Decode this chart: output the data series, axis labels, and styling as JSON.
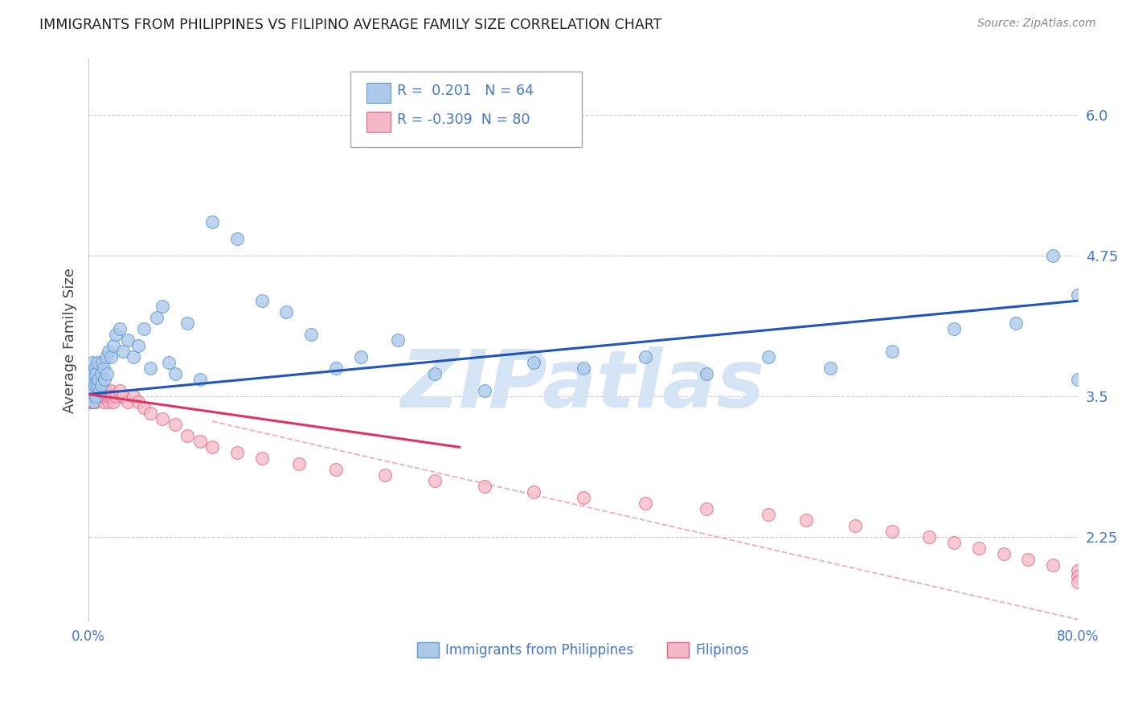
{
  "title": "IMMIGRANTS FROM PHILIPPINES VS FILIPINO AVERAGE FAMILY SIZE CORRELATION CHART",
  "source": "Source: ZipAtlas.com",
  "ylabel": "Average Family Size",
  "yticks": [
    2.25,
    3.5,
    4.75,
    6.0
  ],
  "xlim": [
    0.0,
    0.8
  ],
  "ylim": [
    1.5,
    6.5
  ],
  "series1_label": "Immigrants from Philippines",
  "series1_R": 0.201,
  "series1_N": 64,
  "series1_color": "#adc9ea",
  "series1_edge": "#5b9bd5",
  "series2_label": "Filipinos",
  "series2_R": -0.309,
  "series2_N": 80,
  "series2_color": "#f5b8c8",
  "series2_edge": "#e8607a",
  "trend1_color": "#2255bb",
  "trend2_color": "#dd3366",
  "trend2_dash_color": "#f0a0b8",
  "watermark": "ZIPatlas",
  "watermark_color": "#d5e4f5",
  "bg_color": "#ffffff",
  "grid_color": "#cccccc",
  "title_color": "#222222",
  "axis_label_color": "#444444",
  "tick_color": "#4477cc",
  "legend_box_edge": "#aaaaaa",
  "series1_x": [
    0.001,
    0.001,
    0.002,
    0.002,
    0.003,
    0.003,
    0.003,
    0.004,
    0.004,
    0.004,
    0.005,
    0.005,
    0.006,
    0.006,
    0.007,
    0.007,
    0.008,
    0.009,
    0.01,
    0.01,
    0.011,
    0.012,
    0.013,
    0.014,
    0.015,
    0.016,
    0.018,
    0.02,
    0.022,
    0.025,
    0.028,
    0.032,
    0.036,
    0.04,
    0.045,
    0.05,
    0.055,
    0.06,
    0.065,
    0.07,
    0.08,
    0.09,
    0.1,
    0.12,
    0.14,
    0.16,
    0.18,
    0.2,
    0.22,
    0.25,
    0.28,
    0.32,
    0.36,
    0.4,
    0.45,
    0.5,
    0.55,
    0.6,
    0.65,
    0.7,
    0.75,
    0.78,
    0.8,
    0.8
  ],
  "series1_y": [
    3.6,
    3.5,
    3.55,
    3.7,
    3.5,
    3.65,
    3.8,
    3.55,
    3.7,
    3.45,
    3.6,
    3.75,
    3.5,
    3.7,
    3.6,
    3.8,
    3.65,
    3.55,
    3.7,
    3.6,
    3.8,
    3.75,
    3.65,
    3.85,
    3.7,
    3.9,
    3.85,
    3.95,
    4.05,
    4.1,
    3.9,
    4.0,
    3.85,
    3.95,
    4.1,
    3.75,
    4.2,
    4.3,
    3.8,
    3.7,
    4.15,
    3.65,
    5.05,
    4.9,
    4.35,
    4.25,
    4.05,
    3.75,
    3.85,
    4.0,
    3.7,
    3.55,
    3.8,
    3.75,
    3.85,
    3.7,
    3.85,
    3.75,
    3.9,
    4.1,
    4.15,
    4.75,
    4.4,
    3.65
  ],
  "series2_x": [
    0.0002,
    0.0003,
    0.0005,
    0.0007,
    0.001,
    0.001,
    0.001,
    0.0015,
    0.002,
    0.002,
    0.002,
    0.002,
    0.003,
    0.003,
    0.003,
    0.003,
    0.004,
    0.004,
    0.004,
    0.005,
    0.005,
    0.005,
    0.006,
    0.006,
    0.006,
    0.007,
    0.007,
    0.008,
    0.008,
    0.009,
    0.009,
    0.01,
    0.01,
    0.011,
    0.012,
    0.013,
    0.014,
    0.015,
    0.016,
    0.017,
    0.018,
    0.019,
    0.02,
    0.022,
    0.025,
    0.028,
    0.032,
    0.036,
    0.04,
    0.045,
    0.05,
    0.06,
    0.07,
    0.08,
    0.09,
    0.1,
    0.12,
    0.14,
    0.17,
    0.2,
    0.24,
    0.28,
    0.32,
    0.36,
    0.4,
    0.45,
    0.5,
    0.55,
    0.58,
    0.62,
    0.65,
    0.68,
    0.7,
    0.72,
    0.74,
    0.76,
    0.78,
    0.8,
    0.8,
    0.8
  ],
  "series2_y": [
    3.5,
    3.55,
    3.6,
    3.45,
    3.55,
    3.65,
    3.5,
    3.6,
    3.5,
    3.6,
    3.45,
    3.55,
    3.5,
    3.6,
    3.45,
    3.55,
    3.5,
    3.6,
    3.45,
    3.55,
    3.5,
    3.6,
    3.5,
    3.55,
    3.45,
    3.5,
    3.6,
    3.5,
    3.55,
    3.5,
    3.6,
    3.5,
    3.55,
    3.5,
    3.45,
    3.5,
    3.55,
    3.5,
    3.45,
    3.5,
    3.55,
    3.5,
    3.45,
    3.5,
    3.55,
    3.5,
    3.45,
    3.5,
    3.45,
    3.4,
    3.35,
    3.3,
    3.25,
    3.15,
    3.1,
    3.05,
    3.0,
    2.95,
    2.9,
    2.85,
    2.8,
    2.75,
    2.7,
    2.65,
    2.6,
    2.55,
    2.5,
    2.45,
    2.4,
    2.35,
    2.3,
    2.25,
    2.2,
    2.15,
    2.1,
    2.05,
    2.0,
    1.95,
    1.9,
    1.85
  ],
  "trend1_x0": 0.0,
  "trend1_x1": 0.8,
  "trend1_y0": 3.52,
  "trend1_y1": 4.35,
  "trend2_x0": 0.0,
  "trend2_x1": 0.3,
  "trend2_y0": 3.52,
  "trend2_y1": 3.05,
  "trend2_dash_x0": 0.1,
  "trend2_dash_x1": 0.8,
  "trend2_dash_y0": 3.28,
  "trend2_dash_y1": 1.52
}
